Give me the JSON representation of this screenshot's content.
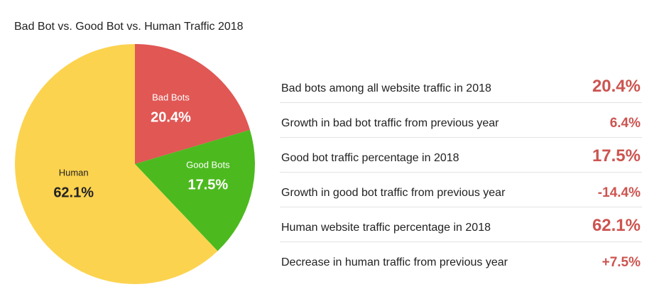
{
  "chart_data": {
    "type": "pie",
    "title": "Bad Bot vs. Good Bot vs. Human Traffic 2018",
    "start_angle_deg": 0,
    "direction": "clockwise",
    "slices": [
      {
        "name": "Bad Bots",
        "value": 20.4,
        "label": "20.4%",
        "color": "#e05754",
        "text_color": "#ffffff"
      },
      {
        "name": "Good Bots",
        "value": 17.5,
        "label": "17.5%",
        "color": "#4cba1e",
        "text_color": "#ffffff"
      },
      {
        "name": "Human",
        "value": 62.1,
        "label": "62.1%",
        "color": "#fcd34f",
        "text_color": "#222222"
      }
    ]
  },
  "stats": [
    {
      "label": "Bad bots among all website traffic in 2018",
      "value": "20.4%",
      "emphasis": "big"
    },
    {
      "label": "Growth in bad bot traffic from previous year",
      "value": "6.4%",
      "emphasis": "small"
    },
    {
      "label": "Good bot traffic percentage in 2018",
      "value": "17.5%",
      "emphasis": "big"
    },
    {
      "label": "Growth in good bot traffic from previous year",
      "value": "-14.4%",
      "emphasis": "small"
    },
    {
      "label": "Human website traffic percentage in 2018",
      "value": "62.1%",
      "emphasis": "big"
    },
    {
      "label": "Decrease in human traffic from previous year",
      "value": "+7.5%",
      "emphasis": "small"
    }
  ],
  "colors": {
    "stat_value": "#cc5450",
    "divider": "#e2e2e2",
    "text": "#222222"
  }
}
